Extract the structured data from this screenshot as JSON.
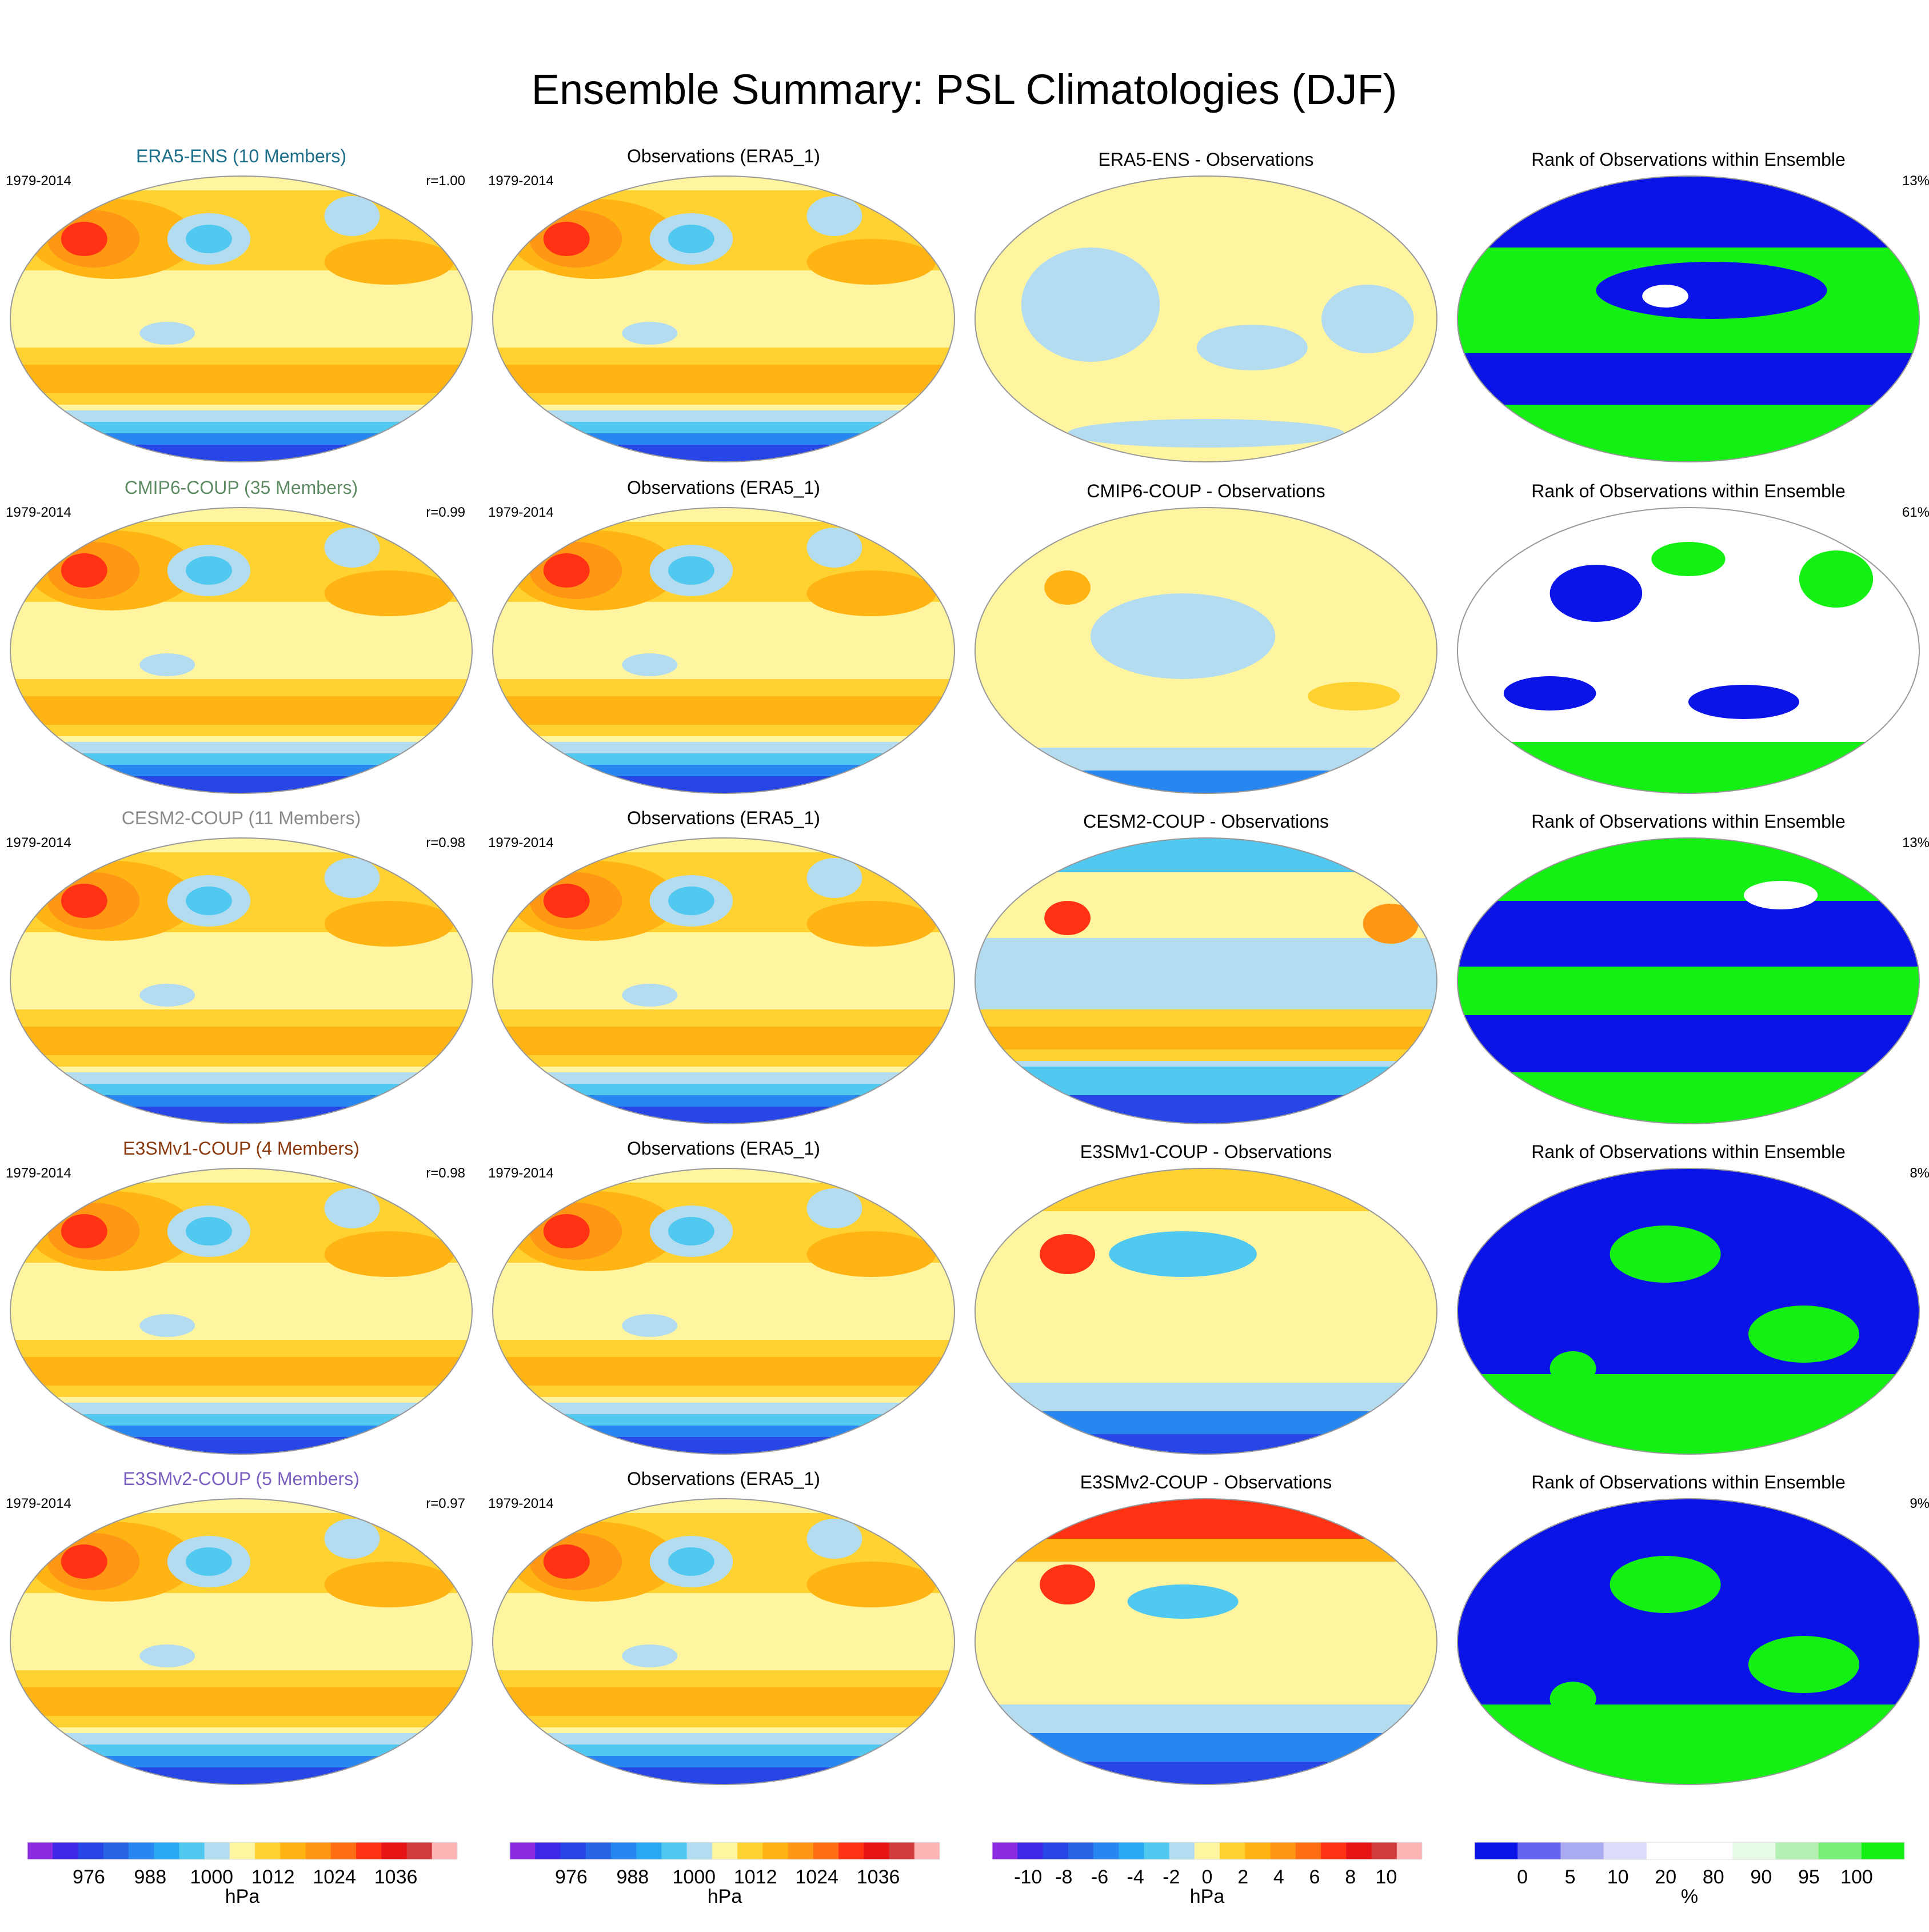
{
  "title": "Ensemble Summary: PSL Climatologies (DJF)",
  "panel_titles": {
    "obs": "Observations (ERA5_1)",
    "rank": "Rank of Observations within Ensemble"
  },
  "rows": [
    {
      "ensemble": "ERA5-ENS (10 Members)",
      "color": "#1f6f8b",
      "period": "1979-2014",
      "obs_period": "1979-2014",
      "corr": "r=1.00",
      "diff_title": "ERA5-ENS - Observations",
      "rank_pct": "13%",
      "diff_style": "era5",
      "rank_style": "speckle"
    },
    {
      "ensemble": "CMIP6-COUP (35 Members)",
      "color": "#5e8a63",
      "period": "1979-2014",
      "obs_period": "1979-2014",
      "corr": "r=0.99",
      "diff_title": "CMIP6-COUP - Observations",
      "rank_pct": "61%",
      "diff_style": "mild",
      "rank_style": "white"
    },
    {
      "ensemble": "CESM2-COUP (11 Members)",
      "color": "#8a8a8a",
      "period": "1979-2014",
      "obs_period": "1979-2014",
      "corr": "r=0.98",
      "diff_title": "CESM2-COUP - Observations",
      "rank_pct": "13%",
      "diff_style": "cesm",
      "rank_style": "bands"
    },
    {
      "ensemble": "E3SMv1-COUP (4 Members)",
      "color": "#8b3a0f",
      "period": "1979-2014",
      "obs_period": "1979-2014",
      "corr": "r=0.98",
      "diff_title": "E3SMv1-COUP - Observations",
      "rank_pct": "8%",
      "diff_style": "e3v1",
      "rank_style": "blue_top"
    },
    {
      "ensemble": "E3SMv2-COUP (5 Members)",
      "color": "#7a5fc0",
      "period": "1979-2014",
      "obs_period": "1979-2014",
      "corr": "r=0.97",
      "diff_title": "E3SMv2-COUP - Observations",
      "rank_pct": "9%",
      "diff_style": "e3v2",
      "rank_style": "blue_top"
    }
  ],
  "colorbars": [
    {
      "labels": [
        "976",
        "988",
        "1000",
        "1012",
        "1024",
        "1036"
      ],
      "unit": "hPa",
      "colors": [
        "#8a2be2",
        "#3c28e6",
        "#2846e6",
        "#2864e6",
        "#2886f0",
        "#28a8f0",
        "#50c8f0",
        "#b4dcf0",
        "#fff5a0",
        "#ffd232",
        "#ffb414",
        "#ff9614",
        "#ff6e14",
        "#ff3214",
        "#e61414",
        "#d23c3c",
        "#ffb4b4"
      ]
    },
    {
      "labels": [
        "976",
        "988",
        "1000",
        "1012",
        "1024",
        "1036"
      ],
      "unit": "hPa",
      "colors": [
        "#8a2be2",
        "#3c28e6",
        "#2846e6",
        "#2864e6",
        "#2886f0",
        "#28a8f0",
        "#50c8f0",
        "#b4dcf0",
        "#fff5a0",
        "#ffd232",
        "#ffb414",
        "#ff9614",
        "#ff6e14",
        "#ff3214",
        "#e61414",
        "#d23c3c",
        "#ffb4b4"
      ]
    },
    {
      "labels": [
        "-10",
        "-8",
        "-6",
        "-4",
        "-2",
        "0",
        "2",
        "4",
        "6",
        "8",
        "10"
      ],
      "unit": "hPa",
      "colors": [
        "#8a2be2",
        "#3c28e6",
        "#2846e6",
        "#2864e6",
        "#2886f0",
        "#28a8f0",
        "#50c8f0",
        "#b4dcf0",
        "#fff5a0",
        "#ffd232",
        "#ffb414",
        "#ff9614",
        "#ff6e14",
        "#ff3214",
        "#e61414",
        "#d23c3c",
        "#ffb4b4"
      ]
    },
    {
      "labels": [
        "0",
        "5",
        "10",
        "20",
        "80",
        "90",
        "95",
        "100"
      ],
      "unit": "%",
      "colors": [
        "#0a14e6",
        "#6464f0",
        "#aaaaf0",
        "#dcdcfa",
        "#ffffff",
        "#ffffff",
        "#e6fae6",
        "#b4f0b4",
        "#78f078",
        "#14f014"
      ]
    }
  ],
  "map_colors": {
    "cold3": "#2846e6",
    "cold2": "#2886f0",
    "cold1": "#50c8f0",
    "pale_blue": "#b4dcf0",
    "pale_yellow": "#fff5a0",
    "yellow": "#ffd232",
    "orange": "#ffb414",
    "dark_orange": "#ff9614",
    "red": "#ff3214",
    "green": "#14f014",
    "blue": "#0a14e6"
  }
}
